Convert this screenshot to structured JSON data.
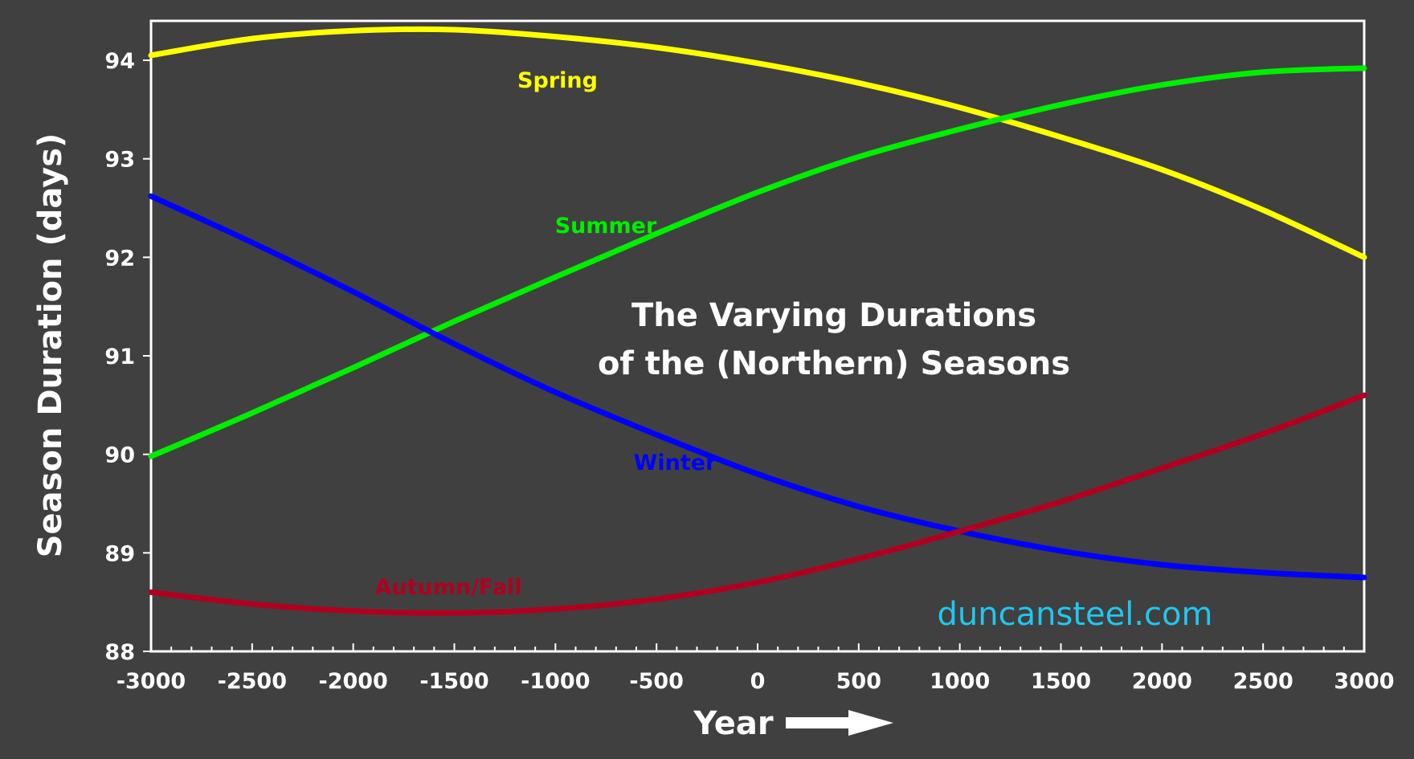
{
  "chart_data": {
    "type": "line",
    "title_lines": [
      "The Varying Durations",
      "of the (Northern) Seasons"
    ],
    "xlabel": "Year",
    "ylabel": "Season Duration (days)",
    "xlim": [
      -3000,
      3000
    ],
    "ylim": [
      88,
      94.4
    ],
    "x_ticks": [
      -3000,
      -2500,
      -2000,
      -1500,
      -1000,
      -500,
      0,
      500,
      1000,
      1500,
      2000,
      2500,
      3000
    ],
    "x_tick_labels": [
      "-3000",
      "-2500",
      "-2000",
      "-1500",
      "-1000",
      "-500",
      "0",
      "500",
      "1000",
      "1500",
      "2000",
      "2500",
      "3000"
    ],
    "y_ticks": [
      88,
      89,
      90,
      91,
      92,
      93,
      94
    ],
    "y_tick_labels": [
      "88",
      "89",
      "90",
      "91",
      "92",
      "93",
      "94"
    ],
    "x_minor_step": 100,
    "grid": false,
    "legend": "none",
    "watermark": "duncansteel.com",
    "watermark_color": "#1ec8f0",
    "background_color": "#404040",
    "axis_color": "#ffffff",
    "x": [
      -3000,
      -2500,
      -2000,
      -1500,
      -1000,
      -500,
      0,
      500,
      1000,
      1500,
      2000,
      2500,
      3000
    ],
    "series": [
      {
        "name": "Spring",
        "color": "#ffff00",
        "values": [
          94.05,
          94.22,
          94.3,
          94.31,
          94.24,
          94.13,
          93.97,
          93.77,
          93.52,
          93.22,
          92.89,
          92.48,
          92.0
        ]
      },
      {
        "name": "Summer",
        "color": "#00ee00",
        "values": [
          89.98,
          90.42,
          90.88,
          91.35,
          91.8,
          92.24,
          92.66,
          93.02,
          93.3,
          93.55,
          93.75,
          93.88,
          93.92
        ]
      },
      {
        "name": "Winter",
        "color": "#0000ff",
        "values": [
          92.62,
          92.15,
          91.65,
          91.12,
          90.63,
          90.2,
          89.8,
          89.47,
          89.22,
          89.02,
          88.88,
          88.8,
          88.75
        ]
      },
      {
        "name": "Autumn/Fall",
        "color": "#b0001e",
        "values": [
          88.6,
          88.48,
          88.41,
          88.39,
          88.43,
          88.53,
          88.7,
          88.94,
          89.22,
          89.52,
          89.86,
          90.21,
          90.6
        ]
      }
    ]
  }
}
